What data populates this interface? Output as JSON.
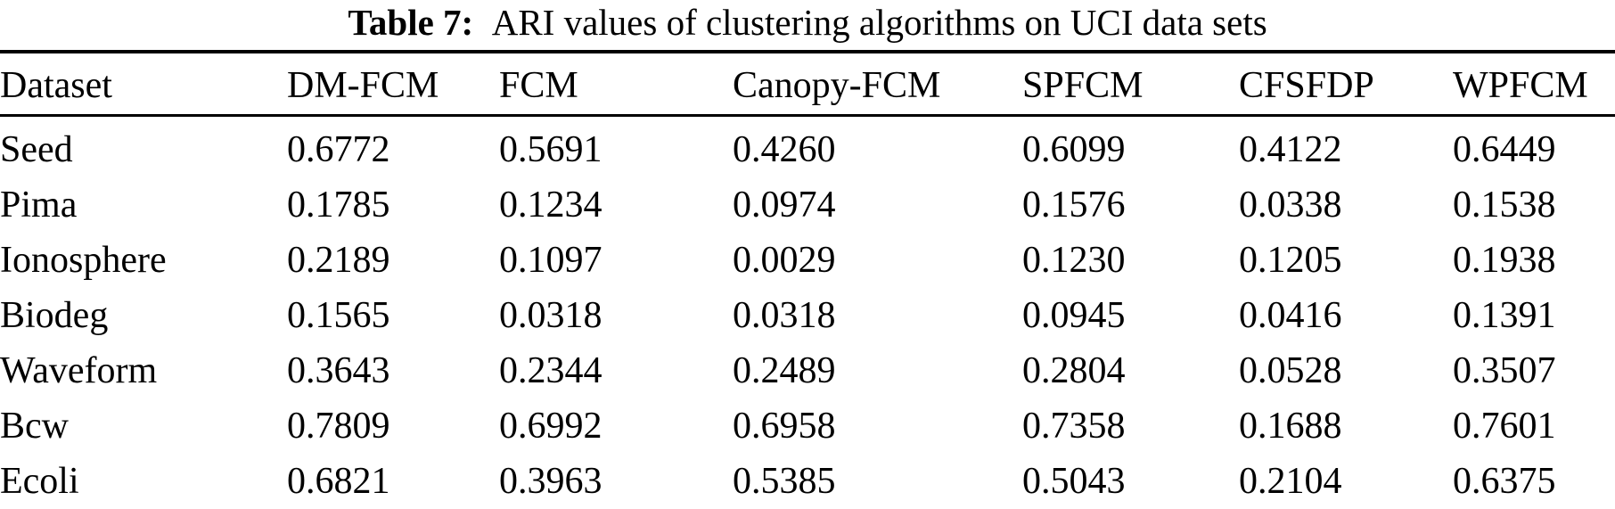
{
  "caption": {
    "label": "Table 7:",
    "text": "ARI values of clustering algorithms on UCI data sets"
  },
  "table": {
    "columns": [
      "Dataset",
      "DM-FCM",
      "FCM",
      "Canopy-FCM",
      "SPFCM",
      "CFSFDP",
      "WPFCM"
    ],
    "emphasis": {
      "bold_value_column": "DM-FCM"
    },
    "rows": [
      {
        "dataset": "Seed",
        "values": [
          "0.6772",
          "0.5691",
          "0.4260",
          "0.6099",
          "0.4122",
          "0.6449"
        ]
      },
      {
        "dataset": "Pima",
        "values": [
          "0.1785",
          "0.1234",
          "0.0974",
          "0.1576",
          "0.0338",
          "0.1538"
        ]
      },
      {
        "dataset": "Ionosphere",
        "values": [
          "0.2189",
          "0.1097",
          "0.0029",
          "0.1230",
          "0.1205",
          "0.1938"
        ]
      },
      {
        "dataset": "Biodeg",
        "values": [
          "0.1565",
          "0.0318",
          "0.0318",
          "0.0945",
          "0.0416",
          "0.1391"
        ]
      },
      {
        "dataset": "Waveform",
        "values": [
          "0.3643",
          "0.2344",
          "0.2489",
          "0.2804",
          "0.0528",
          "0.3507"
        ]
      },
      {
        "dataset": "Bcw",
        "values": [
          "0.7809",
          "0.6992",
          "0.6958",
          "0.7358",
          "0.1688",
          "0.7601"
        ]
      },
      {
        "dataset": "Ecoli",
        "values": [
          "0.6821",
          "0.3963",
          "0.5385",
          "0.5043",
          "0.2104",
          "0.6375"
        ]
      }
    ]
  },
  "colors": {
    "text": "#000000",
    "background": "#ffffff",
    "rule": "#000000"
  }
}
